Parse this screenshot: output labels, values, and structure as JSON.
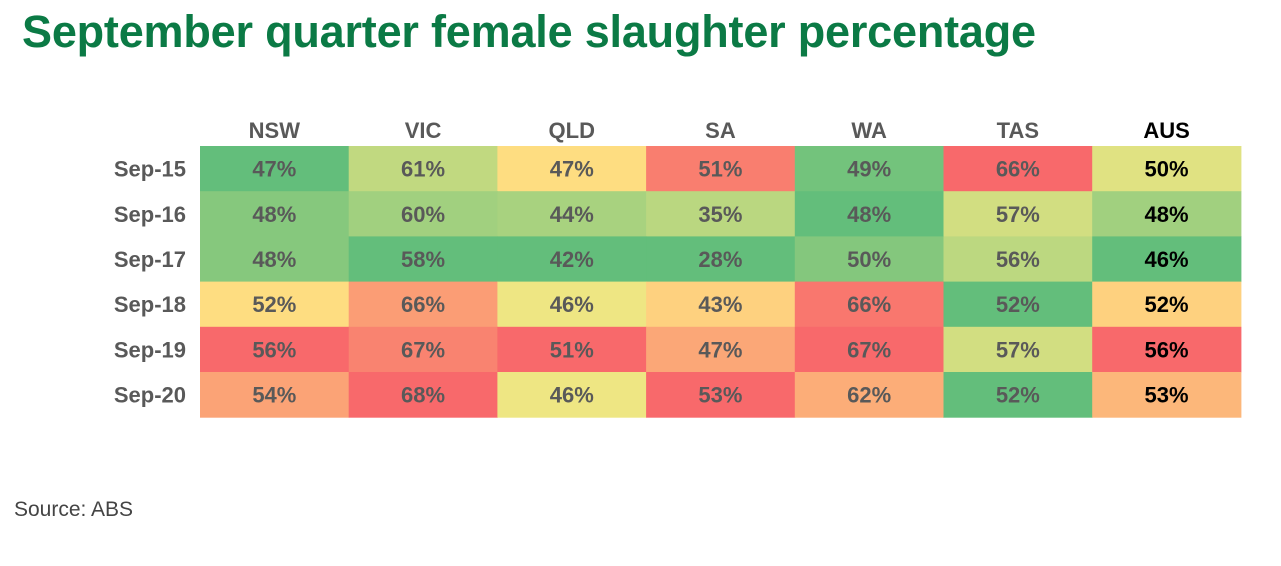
{
  "title": "September quarter female slaughter percentage",
  "source": "Source: ABS",
  "chart_data": {
    "type": "heatmap",
    "columns": [
      "NSW",
      "VIC",
      "QLD",
      "SA",
      "WA",
      "TAS",
      "AUS"
    ],
    "rows": [
      "Sep-15",
      "Sep-16",
      "Sep-17",
      "Sep-18",
      "Sep-19",
      "Sep-20"
    ],
    "values": [
      [
        47,
        61,
        47,
        51,
        49,
        66,
        50
      ],
      [
        48,
        60,
        44,
        35,
        48,
        57,
        48
      ],
      [
        48,
        58,
        42,
        28,
        50,
        56,
        46
      ],
      [
        52,
        66,
        46,
        43,
        66,
        52,
        52
      ],
      [
        56,
        67,
        51,
        47,
        67,
        57,
        56
      ],
      [
        54,
        68,
        46,
        53,
        62,
        52,
        53
      ]
    ],
    "value_format": "percent",
    "color_scale": "per-column green-yellow-red (low = green, high = red)",
    "colors": {
      "low": "#63be7b",
      "mid": "#ffeb84",
      "high": "#f8696b",
      "title": "#0b7a45",
      "label_text": "#595959",
      "aus_text": "#000000"
    }
  }
}
